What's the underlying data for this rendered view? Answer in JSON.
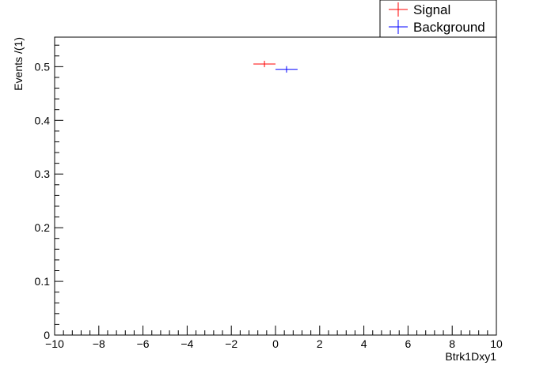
{
  "chart_data": {
    "type": "scatter",
    "title": "",
    "xlabel": "Btrk1Dxy1",
    "ylabel": "Events /(1)",
    "xlim": [
      -10,
      10
    ],
    "ylim": [
      0,
      0.555
    ],
    "x_ticks": [
      -10,
      -8,
      -6,
      -4,
      -2,
      0,
      2,
      4,
      6,
      8,
      10
    ],
    "x_tick_labels": [
      "−10",
      "−8",
      "−6",
      "−4",
      "−2",
      "0",
      "2",
      "4",
      "6",
      "8",
      "10"
    ],
    "y_ticks": [
      0,
      0.1,
      0.2,
      0.3,
      0.4,
      0.5
    ],
    "y_tick_labels": [
      "0",
      "0.1",
      "0.2",
      "0.3",
      "0.4",
      "0.5"
    ],
    "grid": false,
    "legend_position": "top-right",
    "series": [
      {
        "name": "Signal",
        "color": "#ff0000",
        "points": [
          {
            "x": -0.5,
            "xerr": 0.5,
            "y": 0.505,
            "yerr": 0.006
          }
        ]
      },
      {
        "name": "Background",
        "color": "#0000ff",
        "points": [
          {
            "x": 0.5,
            "xerr": 0.5,
            "y": 0.495,
            "yerr": 0.006
          }
        ]
      }
    ]
  }
}
